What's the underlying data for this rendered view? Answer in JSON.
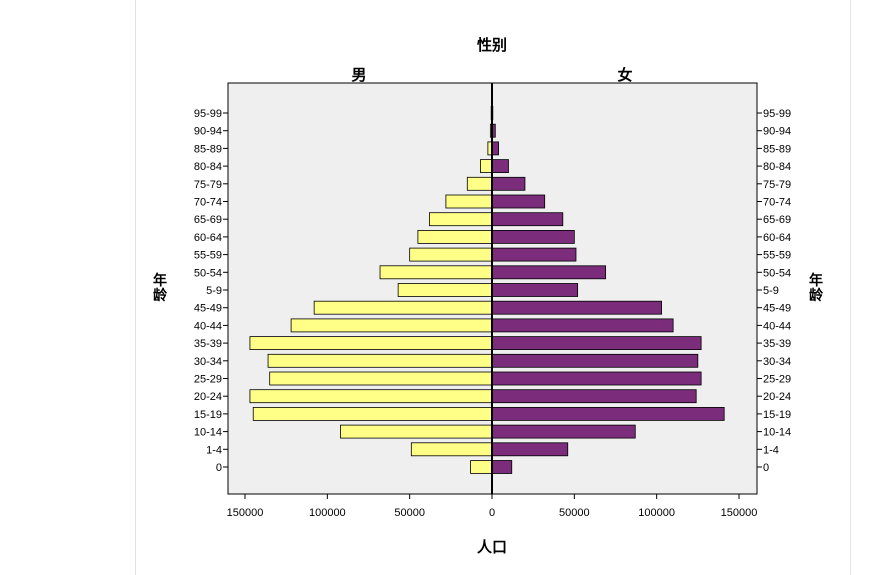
{
  "chart_data": {
    "type": "bar",
    "subtype": "population-pyramid",
    "title": "性别",
    "xlabel": "人口",
    "ylabel": "年龄",
    "xlim": [
      -150000,
      150000
    ],
    "xticks": [
      150000,
      100000,
      50000,
      0,
      50000,
      100000,
      150000
    ],
    "grid": false,
    "categories": [
      "95-99",
      "90-94",
      "85-89",
      "80-84",
      "75-79",
      "70-74",
      "65-69",
      "60-64",
      "55-59",
      "50-54",
      "5-9",
      "45-49",
      "40-44",
      "35-39",
      "30-34",
      "25-29",
      "20-24",
      "15-19",
      "10-14",
      "1-4",
      "0"
    ],
    "series": [
      {
        "name": "男",
        "color": "#ffff88",
        "values": [
          500,
          1000,
          2500,
          7000,
          15000,
          28000,
          38000,
          45000,
          50000,
          68000,
          57000,
          108000,
          122000,
          147000,
          136000,
          135000,
          147000,
          145000,
          92000,
          49000,
          13000
        ]
      },
      {
        "name": "女",
        "color": "#7b2d7b",
        "values": [
          500,
          2000,
          4000,
          10000,
          20000,
          32000,
          43000,
          50000,
          51000,
          69000,
          52000,
          103000,
          110000,
          127000,
          125000,
          127000,
          124000,
          141000,
          87000,
          46000,
          12000
        ]
      }
    ],
    "plot_background": "#efefef"
  }
}
